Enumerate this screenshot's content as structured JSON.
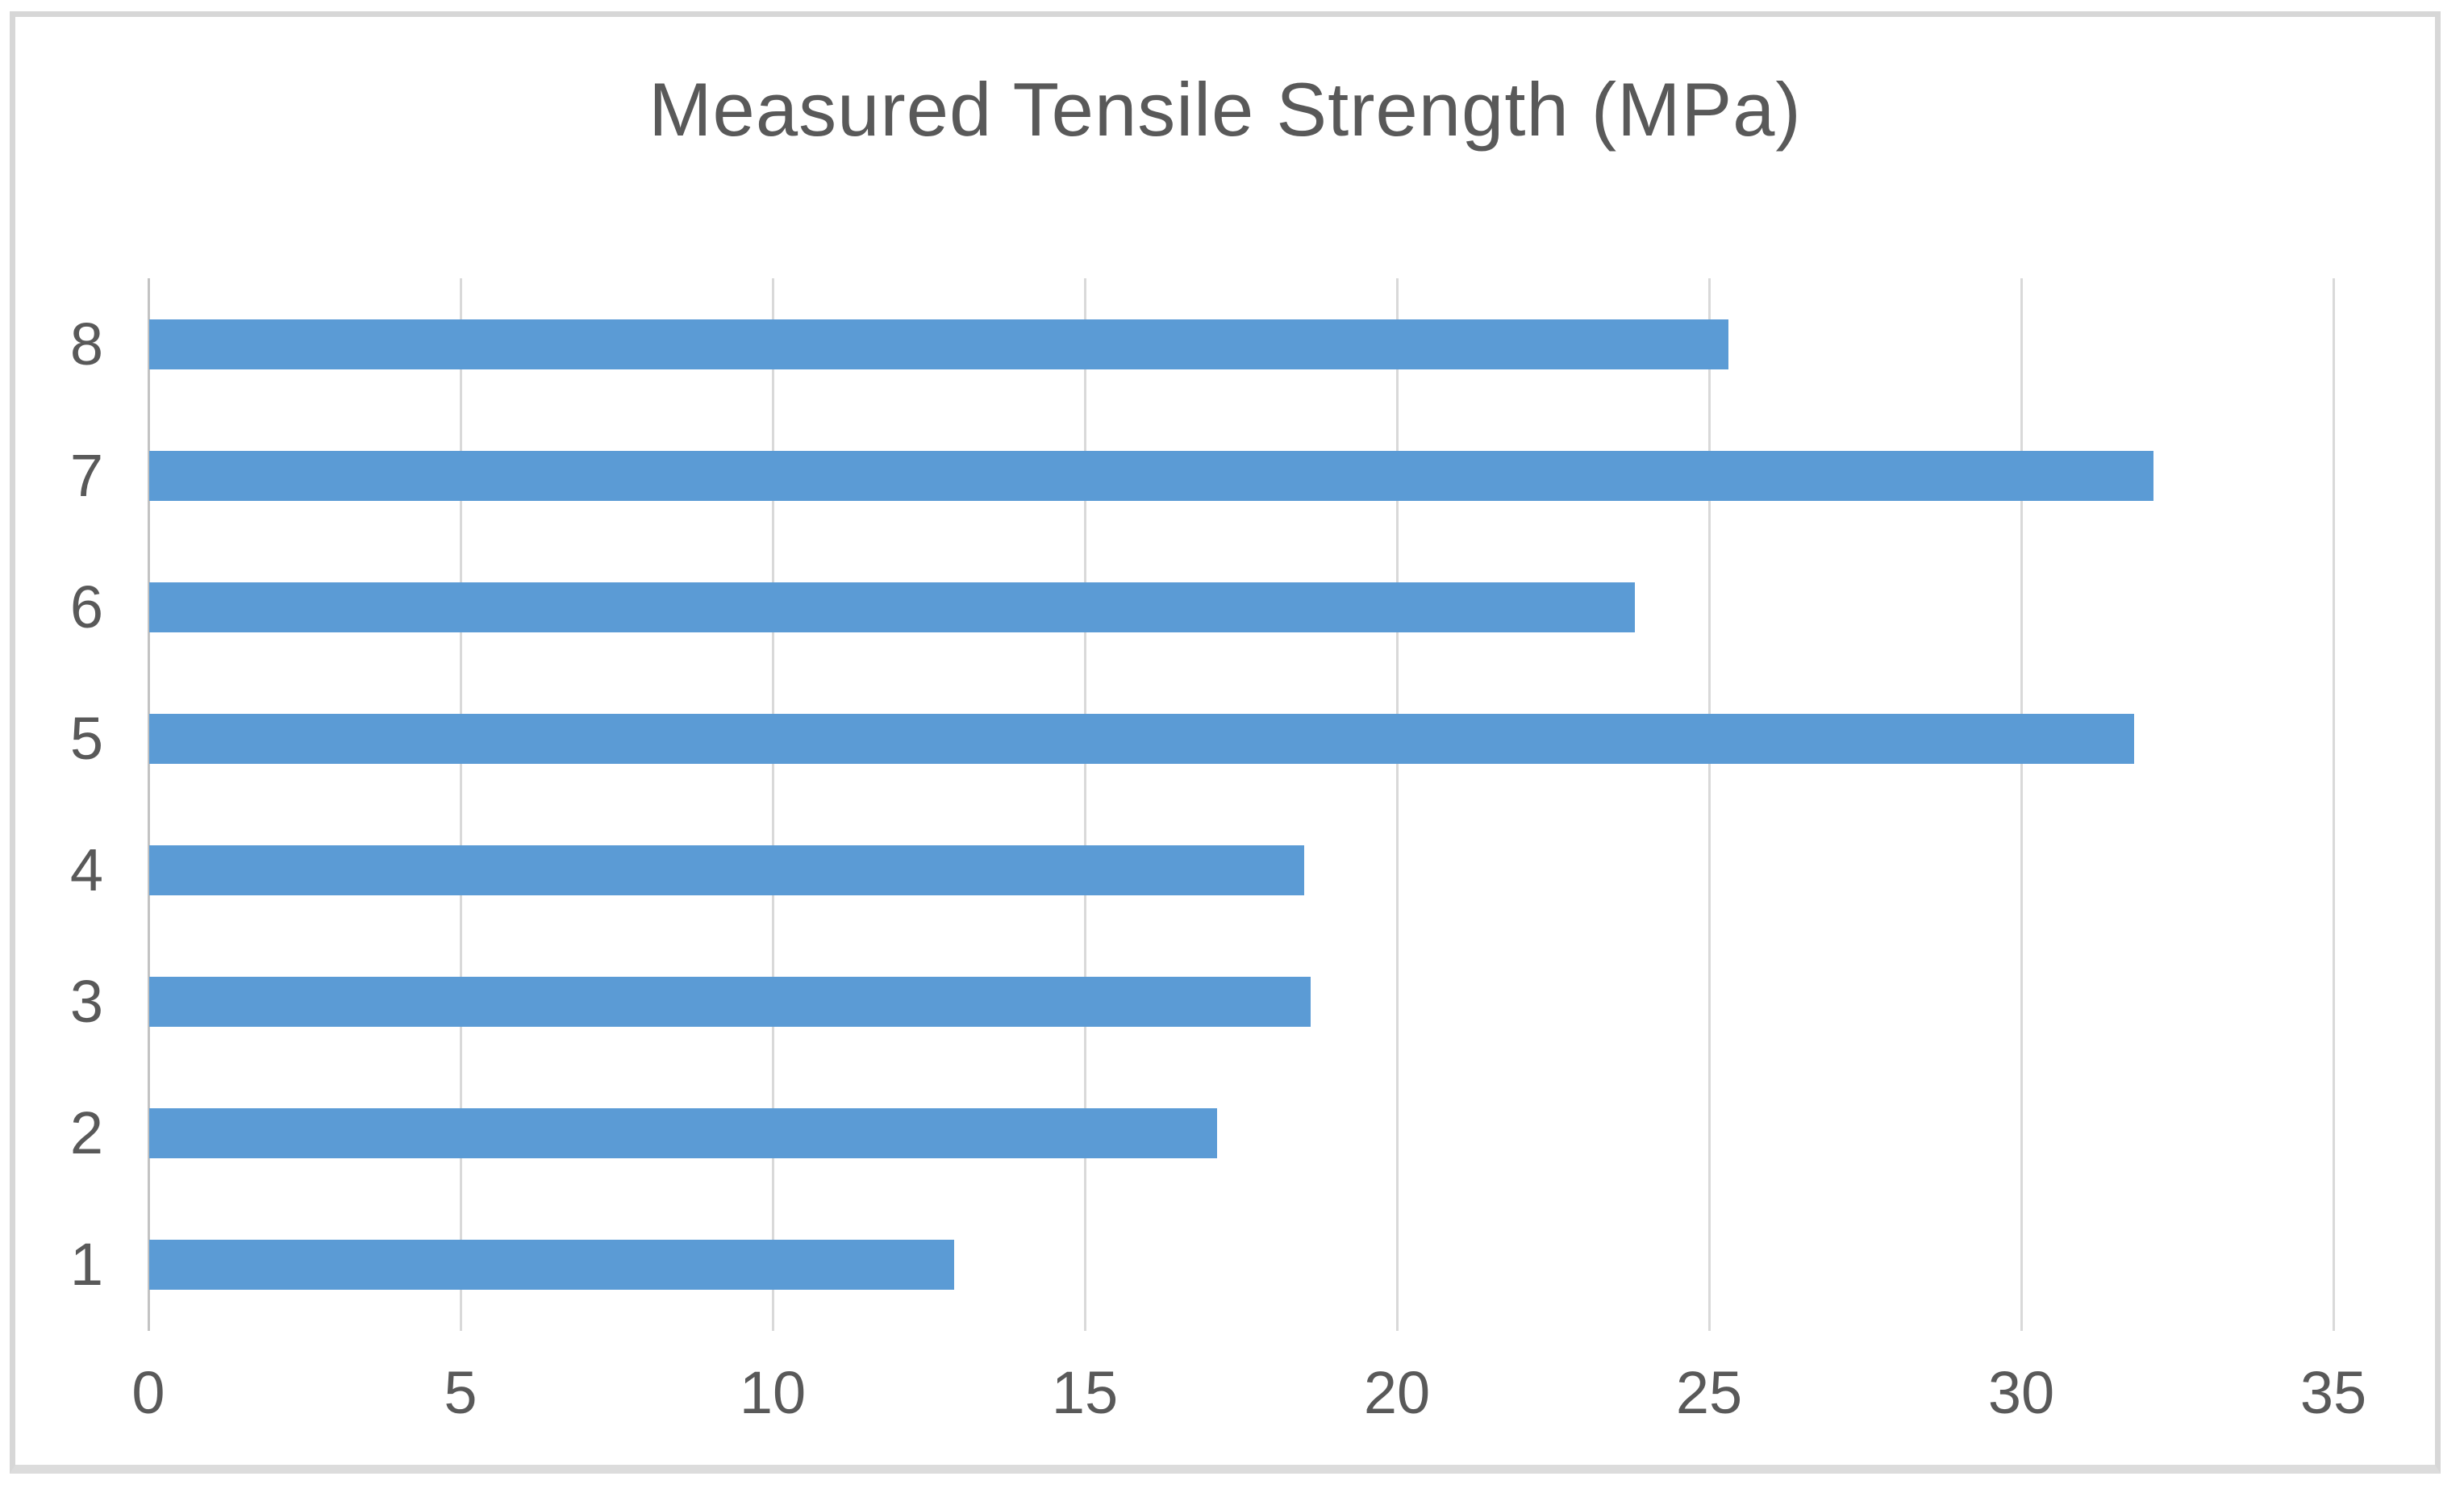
{
  "chart_data": {
    "type": "bar",
    "orientation": "horizontal",
    "title": "Measured Tensile Strength (MPa)",
    "categories": [
      "1",
      "2",
      "3",
      "4",
      "5",
      "6",
      "7",
      "8"
    ],
    "values": [
      12.9,
      17.1,
      18.6,
      18.5,
      31.8,
      23.8,
      32.1,
      25.3
    ],
    "series": [
      {
        "name": "Measured Tensile Strength (MPa)",
        "values": [
          12.9,
          17.1,
          18.6,
          18.5,
          31.8,
          23.8,
          32.1,
          25.3
        ]
      }
    ],
    "category_order_top_to_bottom": [
      "8",
      "7",
      "6",
      "5",
      "4",
      "3",
      "2",
      "1"
    ],
    "xlabel": "",
    "ylabel": "",
    "xlim": [
      0,
      35
    ],
    "x_ticks": [
      0,
      5,
      10,
      15,
      20,
      25,
      30,
      35
    ],
    "grid": true,
    "legend": false,
    "colors": {
      "bar": "#5B9BD5",
      "gridline": "#D9D9D9",
      "axis_line": "#C3C3C3",
      "text": "#595959",
      "frame_border": "#D7D7D7",
      "background": "#FFFFFF"
    }
  }
}
